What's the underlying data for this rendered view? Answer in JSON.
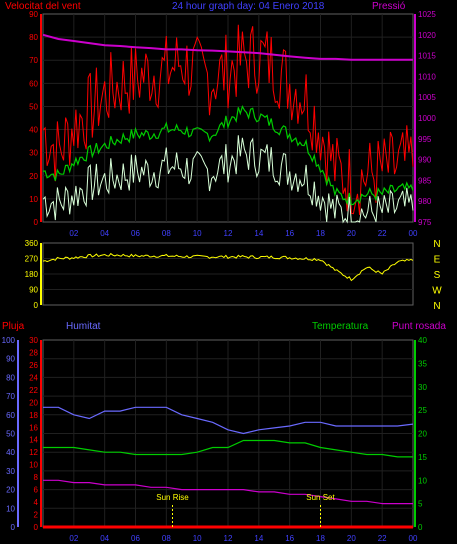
{
  "header": {
    "left_label": "Velocitat del vent",
    "title": "24 hour graph day: 04 Enero 2018",
    "right_label": "Pressió"
  },
  "colors": {
    "wind_max": "#ff0000",
    "wind_avg": "#00cc00",
    "wind_min": "#d8ffd8",
    "pressure": "#cc00cc",
    "direction": "#ffff00",
    "humidity": "#6a6aff",
    "temperature": "#00cc00",
    "dewpoint": "#cc00cc",
    "rain": "#ff0000",
    "axis_left": "#ff0000",
    "axis_right": "#cc00cc",
    "axis_temp": "#00cc00",
    "axis_hum": "#6a6aff",
    "axis_dir": "#ffff00",
    "sun": "#ffff00"
  },
  "chart_data": [
    {
      "type": "line",
      "name": "wind-and-pressure",
      "x_ticks": [
        "02",
        "04",
        "06",
        "08",
        "10",
        "12",
        "14",
        "16",
        "18",
        "20",
        "22",
        "00"
      ],
      "left_axis": {
        "label": "Velocitat del vent",
        "ylim": [
          0,
          90
        ],
        "ticks": [
          "0",
          "10",
          "20",
          "30",
          "40",
          "50",
          "60",
          "70",
          "80",
          "90"
        ]
      },
      "right_axis": {
        "label": "Pressió",
        "ylim": [
          975,
          1025
        ],
        "ticks": [
          "975",
          "980",
          "985",
          "990",
          "995",
          "1000",
          "1005",
          "1010",
          "1015",
          "1020",
          "1025"
        ]
      },
      "series": [
        {
          "name": "wind_max",
          "axis": "left",
          "values": [
            40,
            30,
            42,
            48,
            55,
            60,
            62,
            65,
            65,
            70,
            64,
            62,
            66,
            70,
            72,
            68,
            60,
            55,
            40,
            22,
            18,
            20,
            22,
            24,
            26
          ]
        },
        {
          "name": "wind_avg",
          "axis": "left",
          "values": [
            22,
            20,
            26,
            30,
            33,
            36,
            38,
            38,
            40,
            40,
            38,
            38,
            44,
            48,
            46,
            42,
            38,
            34,
            24,
            12,
            10,
            12,
            12,
            14,
            14
          ]
        },
        {
          "name": "wind_min",
          "axis": "left",
          "values": [
            10,
            8,
            12,
            16,
            18,
            20,
            22,
            22,
            24,
            24,
            22,
            22,
            26,
            30,
            28,
            26,
            22,
            20,
            12,
            4,
            4,
            4,
            4,
            6,
            6
          ]
        },
        {
          "name": "pressure",
          "axis": "right",
          "values": [
            1020,
            1019,
            1018.5,
            1018,
            1017.5,
            1017.3,
            1017,
            1016.8,
            1016.5,
            1016.5,
            1016.3,
            1016.2,
            1016,
            1015.8,
            1015.6,
            1015.2,
            1014.8,
            1014.5,
            1014.2,
            1014.2,
            1014,
            1014,
            1014,
            1014,
            1014
          ]
        }
      ]
    },
    {
      "type": "line",
      "name": "wind-direction",
      "left_axis": {
        "ylim": [
          0,
          360
        ],
        "ticks": [
          "0",
          "90",
          "180",
          "270",
          "360"
        ]
      },
      "right_axis": {
        "ticks": [
          "N",
          "W",
          "S",
          "E",
          "N"
        ]
      },
      "series": [
        {
          "name": "direction",
          "values": [
            255,
            270,
            275,
            285,
            290,
            290,
            285,
            285,
            285,
            282,
            280,
            280,
            280,
            280,
            278,
            278,
            275,
            270,
            265,
            200,
            150,
            220,
            180,
            250,
            260
          ]
        }
      ]
    },
    {
      "type": "line",
      "name": "humidity-temperature",
      "x_ticks": [
        "02",
        "04",
        "06",
        "08",
        "10",
        "12",
        "14",
        "16",
        "18",
        "20",
        "22",
        "00"
      ],
      "labels": {
        "rain": "Pluja",
        "humidity": "Humitat",
        "temperature": "Temperatura",
        "dewpoint": "Punt rosada"
      },
      "axis_rain": {
        "ylim": [
          0,
          30
        ],
        "ticks": [
          "0",
          "2",
          "4",
          "6",
          "8",
          "10",
          "12",
          "14",
          "16",
          "18",
          "20",
          "22",
          "24",
          "26",
          "28",
          "30"
        ]
      },
      "axis_humidity": {
        "ylim": [
          0,
          100
        ],
        "ticks": [
          "0",
          "10",
          "20",
          "30",
          "40",
          "50",
          "60",
          "70",
          "80",
          "90",
          "100"
        ]
      },
      "axis_temp": {
        "ylim": [
          0,
          40
        ],
        "ticks": [
          "0",
          "5",
          "10",
          "15",
          "20",
          "25",
          "30",
          "35",
          "40"
        ]
      },
      "series": [
        {
          "name": "humidity",
          "values": [
            64,
            64,
            60,
            58,
            62,
            62,
            64,
            64,
            64,
            60,
            58,
            56,
            52,
            50,
            52,
            53,
            54,
            56,
            56,
            54,
            54,
            54,
            54,
            54,
            55
          ]
        },
        {
          "name": "temperature",
          "values": [
            17,
            17,
            17,
            16.5,
            16,
            16,
            15.5,
            15.5,
            15.5,
            15.5,
            16,
            17,
            17,
            18.5,
            18.5,
            18.5,
            18,
            18,
            17,
            16.5,
            16,
            15.5,
            15.5,
            15,
            15
          ]
        },
        {
          "name": "dewpoint",
          "values": [
            10,
            10,
            9.5,
            9.5,
            9,
            9,
            9,
            8.5,
            8.5,
            8,
            8,
            8,
            8,
            8,
            7.5,
            7.5,
            7,
            7,
            6.5,
            6,
            5.5,
            5.5,
            5,
            5,
            5
          ]
        },
        {
          "name": "rain",
          "values": [
            0,
            0,
            0,
            0,
            0,
            0,
            0,
            0,
            0,
            0,
            0,
            0,
            0,
            0,
            0,
            0,
            0,
            0,
            0,
            0,
            0,
            0,
            0,
            0,
            0
          ]
        }
      ],
      "annotations": [
        {
          "label": "Sun Rise",
          "hour": 8.4
        },
        {
          "label": "Sun Set",
          "hour": 18.0
        }
      ]
    }
  ]
}
